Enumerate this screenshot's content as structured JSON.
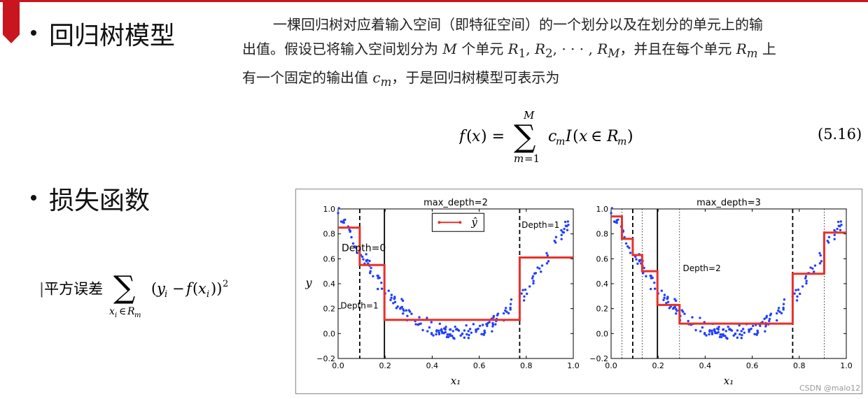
{
  "slide": {
    "bullet1": "回归树模型",
    "bullet2": "损失函数",
    "para_line1": "一棵回归树对应着输入空间（即特征空间）的一个划分以及在划分的单元上的输",
    "para_line2_a": "出值。假设已将输入空间划分为",
    "para_line2_b": "个单元",
    "para_line2_c": "，并且在每个单元",
    "para_line2_d": "上",
    "para_line3_a": "有一个固定的输出值",
    "para_line3_b": "，于是回归树模型可表示为",
    "eq_number": "(5.16)",
    "loss_prefix": "平方误差",
    "watermark": "CSDN @malo12"
  },
  "charts": {
    "panels": [
      {
        "title": "max_depth=2",
        "xlabel": "x₁",
        "ylabel": "y",
        "xlim": [
          0.0,
          1.0
        ],
        "ylim": [
          -0.2,
          1.0
        ],
        "xticks": [
          "0.0",
          "0.2",
          "0.4",
          "0.6",
          "0.8",
          "1.0"
        ],
        "yticks": [
          "−0.2",
          "0.0",
          "0.2",
          "0.4",
          "0.6",
          "0.8",
          "1.0"
        ],
        "legend_label": "ŷ",
        "annotations": [
          {
            "text": "Depth=0",
            "x": 0.015,
            "y": 0.66
          },
          {
            "text": "Depth=1",
            "x": 0.01,
            "y": 0.2
          },
          {
            "text": "Depth=1",
            "x": 0.78,
            "y": 0.85
          }
        ]
      },
      {
        "title": "max_depth=3",
        "xlabel": "x₁",
        "ylabel": "",
        "xlim": [
          0.0,
          1.0
        ],
        "ylim": [
          -0.2,
          1.0
        ],
        "xticks": [
          "0.0",
          "0.2",
          "0.4",
          "0.6",
          "0.8",
          "1.0"
        ],
        "yticks": [
          "−0.2",
          "0.0",
          "0.2",
          "0.4",
          "0.6",
          "0.8",
          "1.0"
        ],
        "annotations": [
          {
            "text": "Depth=2",
            "x": 0.305,
            "y": 0.5
          }
        ]
      }
    ]
  },
  "chart_data": [
    {
      "type": "scatter",
      "title": "max_depth=2",
      "xlabel": "x₁",
      "ylabel": "y",
      "xlim": [
        0.0,
        1.0
      ],
      "ylim": [
        -0.2,
        1.0
      ],
      "legend": [
        "ŷ"
      ],
      "color_points": "#1f3fff",
      "color_prediction": "#e8302a",
      "splits_solid": [
        0.197
      ],
      "splits_dashed": [
        0.092,
        0.772
      ],
      "prediction_steps": [
        {
          "x0": 0.0,
          "x1": 0.092,
          "y": 0.85
        },
        {
          "x0": 0.092,
          "x1": 0.197,
          "y": 0.55
        },
        {
          "x0": 0.197,
          "x1": 0.772,
          "y": 0.11
        },
        {
          "x0": 0.772,
          "x1": 1.0,
          "y": 0.61
        }
      ]
    },
    {
      "type": "scatter",
      "title": "max_depth=3",
      "xlabel": "x₁",
      "ylabel": "",
      "xlim": [
        0.0,
        1.0
      ],
      "ylim": [
        -0.2,
        1.0
      ],
      "color_points": "#1f3fff",
      "color_prediction": "#e8302a",
      "splits_solid": [
        0.197
      ],
      "splits_dashed": [
        0.092,
        0.772
      ],
      "splits_dotted": [
        0.046,
        0.132,
        0.291,
        0.906
      ],
      "prediction_steps": [
        {
          "x0": 0.0,
          "x1": 0.046,
          "y": 0.94
        },
        {
          "x0": 0.046,
          "x1": 0.092,
          "y": 0.76
        },
        {
          "x0": 0.092,
          "x1": 0.132,
          "y": 0.63
        },
        {
          "x0": 0.132,
          "x1": 0.197,
          "y": 0.5
        },
        {
          "x0": 0.197,
          "x1": 0.291,
          "y": 0.23
        },
        {
          "x0": 0.291,
          "x1": 0.772,
          "y": 0.08
        },
        {
          "x0": 0.772,
          "x1": 0.906,
          "y": 0.48
        },
        {
          "x0": 0.906,
          "x1": 1.0,
          "y": 0.81
        }
      ]
    }
  ]
}
